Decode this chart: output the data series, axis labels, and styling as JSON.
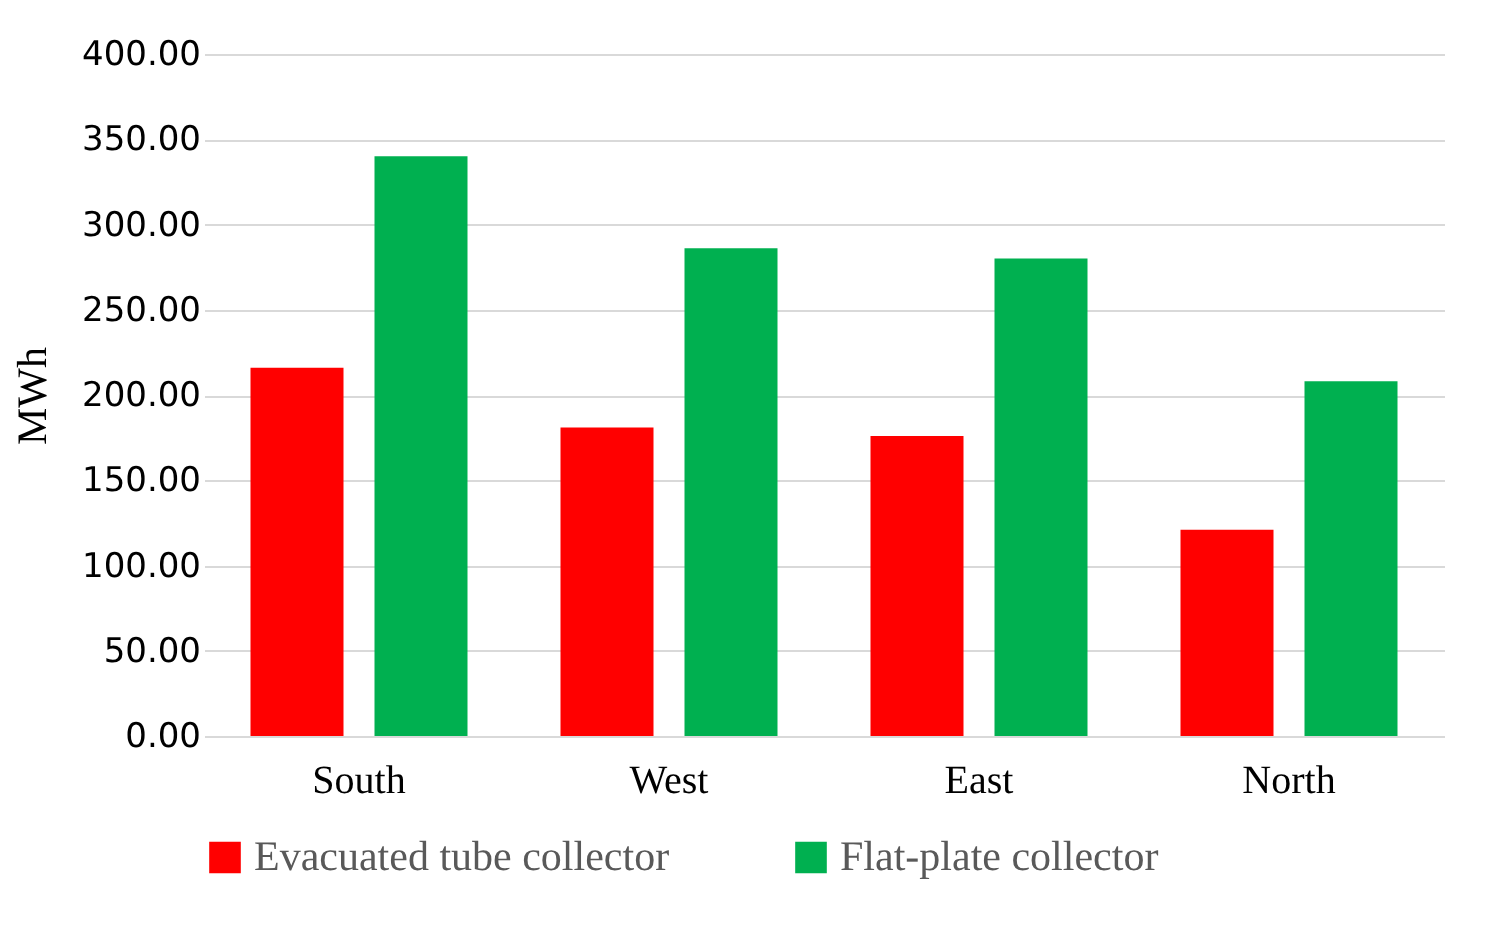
{
  "chart_data": {
    "type": "bar",
    "ylabel": "MWh",
    "categories": [
      "South",
      "West",
      "East",
      "North"
    ],
    "series": [
      {
        "name": "Evacuated tube collector",
        "color": "#ff0000",
        "values": [
          216,
          181,
          176,
          121
        ]
      },
      {
        "name": "Flat-plate collector",
        "color": "#00b050",
        "values": [
          340,
          286,
          280,
          208
        ]
      }
    ],
    "ylim": [
      0,
      400
    ],
    "yticks": [
      {
        "value": 0,
        "label": "0.00"
      },
      {
        "value": 50,
        "label": "50.00"
      },
      {
        "value": 100,
        "label": "100.00"
      },
      {
        "value": 150,
        "label": "150.00"
      },
      {
        "value": 200,
        "label": "200.00"
      },
      {
        "value": 250,
        "label": "250.00"
      },
      {
        "value": 300,
        "label": "300.00"
      },
      {
        "value": 350,
        "label": "350.00"
      },
      {
        "value": 400,
        "label": "400.00"
      }
    ],
    "grid": "y",
    "legend": "bottom"
  }
}
